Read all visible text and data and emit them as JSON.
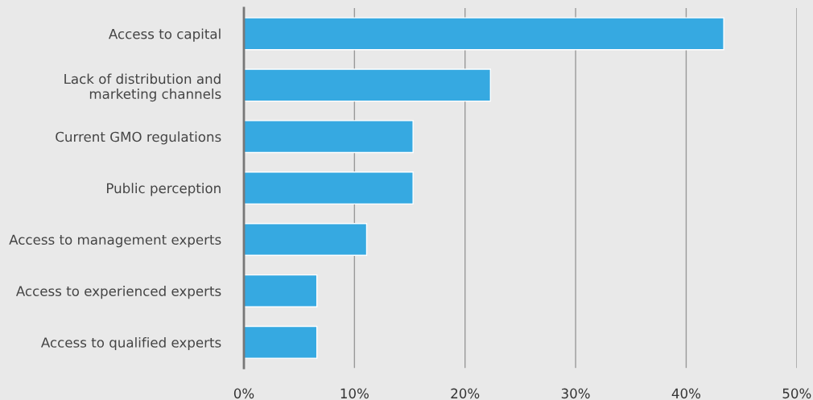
{
  "chart_data": {
    "type": "bar",
    "orientation": "horizontal",
    "categories": [
      "Access to capital",
      "Lack of distribution and\nmarketing channels",
      "Current GMO regulations",
      "Public perception",
      "Access to management experts",
      "Access to experienced experts",
      "Access to qualified experts"
    ],
    "values": [
      43.4,
      22.3,
      15.3,
      15.3,
      11.1,
      6.6,
      6.6
    ],
    "color": "#36a9e1",
    "xlim": [
      0,
      50
    ],
    "xticks": [
      {
        "value": 0,
        "label": "0%"
      },
      {
        "value": 10,
        "label": "10%"
      },
      {
        "value": 20,
        "label": "20%"
      },
      {
        "value": 30,
        "label": "30%"
      },
      {
        "value": 40,
        "label": "40%"
      },
      {
        "value": 50,
        "label": "50%"
      }
    ],
    "grid": "x",
    "legend": false
  }
}
